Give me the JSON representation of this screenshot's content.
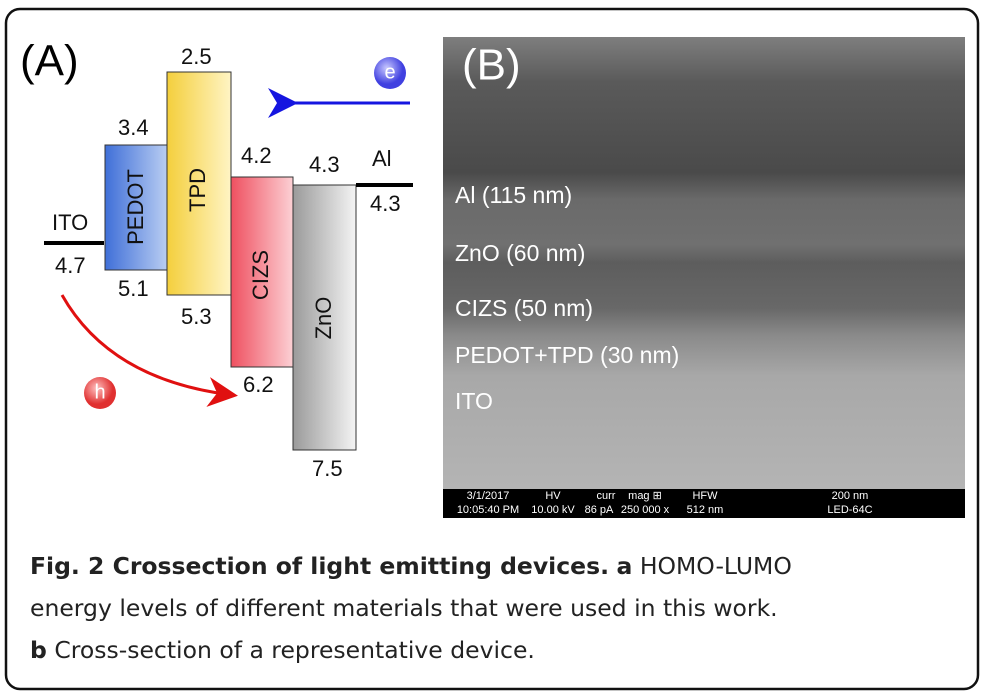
{
  "panel_a": {
    "label": "(A)",
    "materials": [
      {
        "name": "ITO",
        "lumo": 4.7
      },
      {
        "name": "PEDOT",
        "lumo": 3.4,
        "homo": 5.1
      },
      {
        "name": "TPD",
        "lumo": 2.5,
        "homo": 5.3
      },
      {
        "name": "CIZS",
        "lumo": 4.2,
        "homo": 6.2
      },
      {
        "name": "ZnO",
        "lumo": 4.3,
        "homo": 7.5
      },
      {
        "name": "Al",
        "lumo": 4.3
      }
    ],
    "electron": "e",
    "hole": "h"
  },
  "panel_b": {
    "label": "(B)",
    "layers": [
      "Al (115 nm)",
      "ZnO (60 nm)",
      "CIZS (50 nm)",
      "PEDOT+TPD (30 nm)",
      "ITO"
    ],
    "info_bar": {
      "row1": [
        "3/1/2017",
        "HV",
        "curr",
        "mag ⊞",
        "HFW",
        "200 nm"
      ],
      "row2": [
        "10:05:40 PM",
        "10.00 kV",
        "86 pA",
        "250 000 x",
        "512 nm",
        "LED-64C"
      ]
    }
  },
  "caption": {
    "title": "Fig. 2 Crossection of light emitting devices.",
    "a_marker": "a",
    "a_text_1": "HOMO-LUMO",
    "a_text_2": "energy levels of different materials that were used in this work.",
    "b_marker": "b",
    "b_text": "Cross-section of a representative device."
  }
}
